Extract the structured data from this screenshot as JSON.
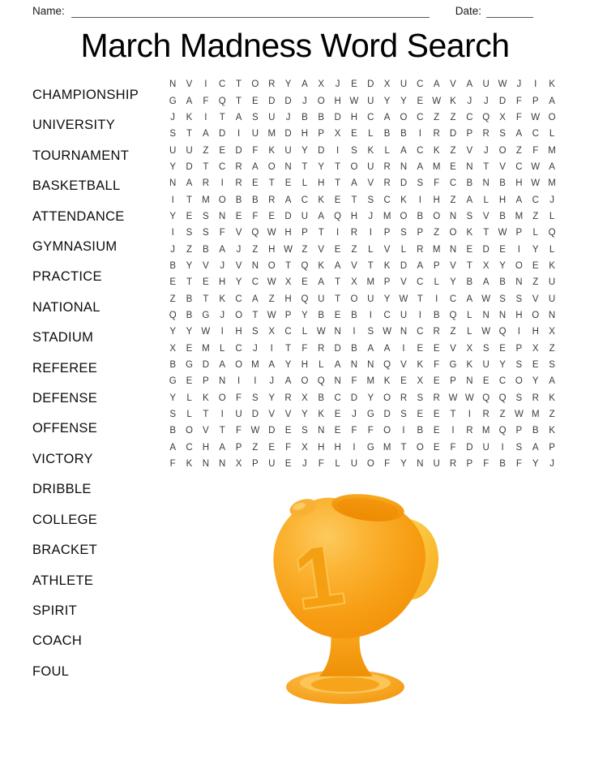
{
  "header": {
    "name_label": "Name:",
    "date_label": "Date:"
  },
  "title": "March Madness Word Search",
  "word_list": [
    "CHAMPIONSHIP",
    "UNIVERSITY",
    "TOURNAMENT",
    "BASKETBALL",
    "ATTENDANCE",
    "GYMNASIUM",
    "PRACTICE",
    "NATIONAL",
    "STADIUM",
    "REFEREE",
    "DEFENSE",
    "OFFENSE",
    "VICTORY",
    "DRIBBLE",
    "COLLEGE",
    "BRACKET",
    "ATHLETE",
    "SPIRIT",
    "COACH",
    "FOUL"
  ],
  "grid": {
    "columns": 24,
    "rows": [
      "NVICTORYAXJEDXUCAVAUWJIK",
      "GAFQTEDDJOHWUYYEWKJJDFPA",
      "JKITASUJBBDHCAOCZZCQXFWO",
      "STADIUMDHPXELBBIRDPRSACL",
      "UUZEDFKUYDISKLACKZVJOZFM",
      "YDTCRAONTYTOURNAMENTVCWA",
      "NARIRETELHTAVRDSFCBNBHWM",
      "ITMOBBRACKETSCKIHZALHACJ",
      "YESNEFEDUAQHJMOBONSVBMZL",
      "ISSFVQWHPTIRIPSPZOKTWPLQ",
      "JZBAJZHWZVEZLVLRMNEDEIYL",
      "BYVJVNOTQKAVTKDAPVTXYOEK",
      "ETEHYCWXEATXMPVCLYBABNZU",
      "ZBTKCAZHQUTOUYWTICAWSSVU",
      "QBGJOTWPYBEBICUIBQLNNHON",
      "YYWIHSXCLWNISWNCRZLWQIHX",
      "XEMLCJITFRDBAAIEEVXSEPXZ",
      "BGDAOMAYHLANNQVKFGKUYSES",
      "GEPNIIJAOQNFMKEXEPNECOYA",
      "YLKOFSYRXBCDYORSRWWQQSRK",
      "SLTIUDVVYKEJGDSEETIRZWMZ",
      "BOVTFWDESNEFFOIBEIRMQPBK",
      "ACHAPZEFXHHIGMTOEFDUISAP",
      "FKNNXPUEJFLUOFYNURPFBFYJ"
    ]
  },
  "trophy": {
    "label": "1",
    "body_color": "#F79E14",
    "highlight_color": "#FDCA5E",
    "handle_color": "#FFD558",
    "opening_color": "#EE8C02",
    "base_color": "#F6A41C",
    "numeral_outline_color": "#FCC44E"
  }
}
